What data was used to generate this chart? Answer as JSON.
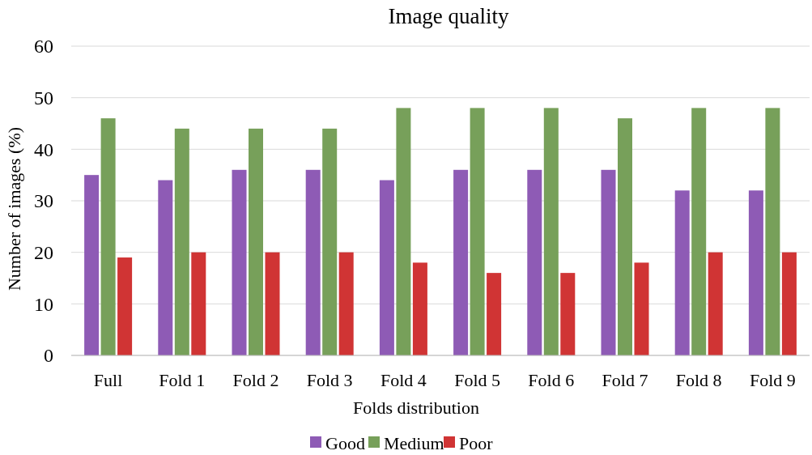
{
  "chart_data": {
    "type": "bar",
    "title": "Image quality",
    "xlabel": "Folds distribution",
    "ylabel": "Number of images (%)",
    "categories": [
      "Full",
      "Fold 1",
      "Fold 2",
      "Fold 3",
      "Fold 4",
      "Fold 5",
      "Fold 6",
      "Fold 7",
      "Fold 8",
      "Fold 9"
    ],
    "series": [
      {
        "name": "Good",
        "color": "#8e5bb5",
        "values": [
          35,
          34,
          36,
          36,
          34,
          36,
          36,
          36,
          32,
          32
        ]
      },
      {
        "name": "Medium",
        "color": "#77a05a",
        "values": [
          46,
          44,
          44,
          44,
          48,
          48,
          48,
          46,
          48,
          48
        ]
      },
      {
        "name": "Poor",
        "color": "#d03434",
        "values": [
          19,
          20,
          20,
          20,
          18,
          16,
          16,
          18,
          20,
          20
        ]
      }
    ],
    "ylim": [
      0,
      60
    ],
    "yticks": [
      0,
      10,
      20,
      30,
      40,
      50,
      60
    ],
    "grid": "y",
    "legend": "bottom"
  }
}
